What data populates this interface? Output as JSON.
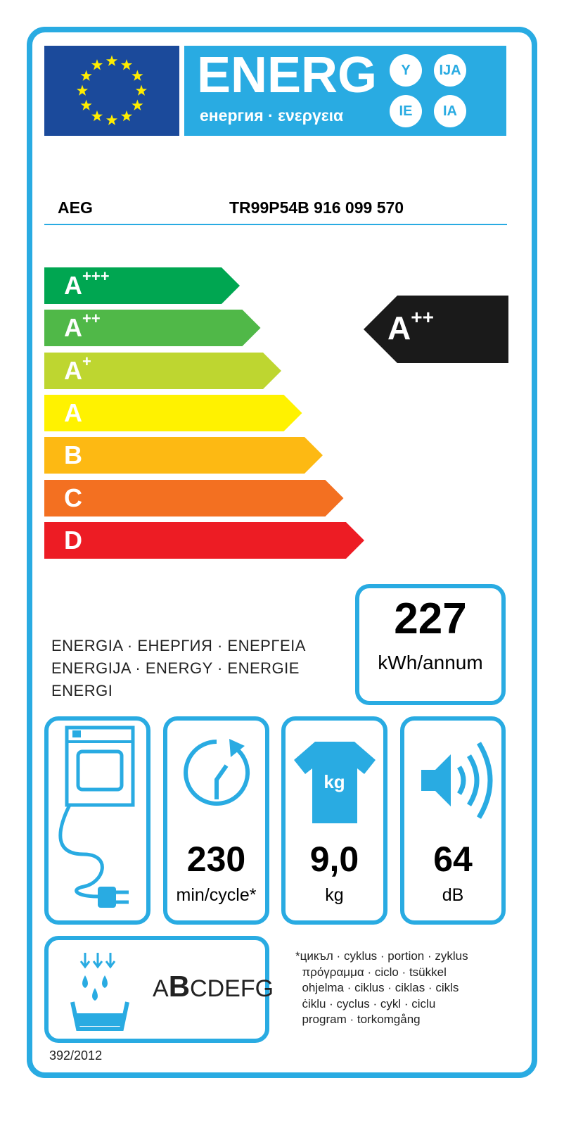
{
  "header": {
    "title": "ENERG",
    "subtitle": "енергия · ενεργεια",
    "suffixes": [
      "Y",
      "IJA",
      "IE",
      "IA"
    ]
  },
  "product": {
    "brand": "AEG",
    "model": "TR99P54B  916 099 570"
  },
  "scale": {
    "classes": [
      {
        "letter": "A",
        "plus": "+++",
        "color": "#00a651"
      },
      {
        "letter": "A",
        "plus": "++",
        "color": "#50b848"
      },
      {
        "letter": "A",
        "plus": "+",
        "color": "#bed630"
      },
      {
        "letter": "A",
        "plus": "",
        "color": "#fff200"
      },
      {
        "letter": "B",
        "plus": "",
        "color": "#fdb913"
      },
      {
        "letter": "C",
        "plus": "",
        "color": "#f37021"
      },
      {
        "letter": "D",
        "plus": "",
        "color": "#ed1c24"
      }
    ],
    "rating": {
      "letter": "A",
      "plus": "++"
    }
  },
  "energy": {
    "value": "227",
    "unit": "kWh/annum",
    "label_lines": [
      "ENERGIA · ЕНЕРГИЯ · ΕΝΕΡΓΕΙΑ",
      "ENERGIJA · ENERGY · ENERGIE",
      "ENERGI"
    ]
  },
  "specs": {
    "cycle_time": {
      "value": "230",
      "unit": "min/cycle*"
    },
    "capacity": {
      "value": "9,0",
      "unit": "kg",
      "icon_text": "kg"
    },
    "noise": {
      "value": "64",
      "unit": "dB"
    }
  },
  "condensation": {
    "scale_first": "A",
    "scale_active": "B",
    "scale_rest": "CDEFG"
  },
  "footnote": {
    "lines": [
      "*цикъл · cyklus · portion · zyklus",
      "  πρόγραμμα · ciclo · tsükkel",
      "  ohjelma · ciklus · ciklas · cikls",
      "  ċiklu · cyclus · cykl · ciclu",
      "  program · torkomgång"
    ]
  },
  "regulation": "392/2012",
  "colors": {
    "accent": "#29abe2",
    "eu_blue": "#1b4a9b",
    "star": "#ffed00"
  }
}
